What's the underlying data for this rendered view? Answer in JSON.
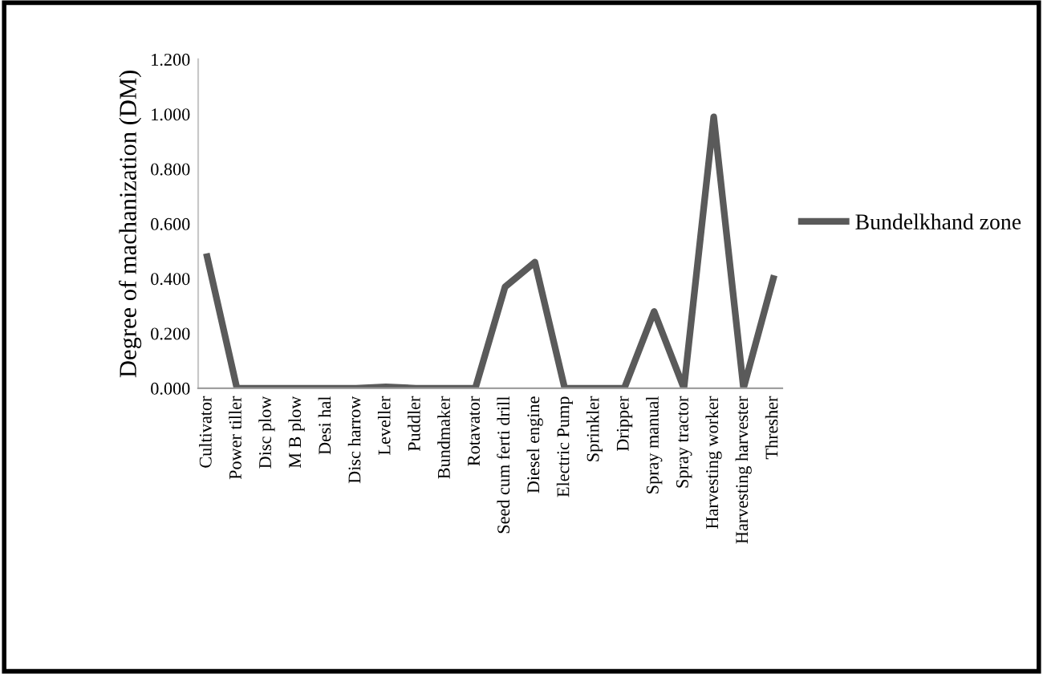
{
  "chart_data": {
    "type": "line",
    "ylabel": "Degree of machanization (DM)",
    "categories": [
      "Cultivator",
      "Power tiller",
      "Disc plow",
      "M B plow",
      "Desi hal",
      "Disc harrow",
      "Leveller",
      "Puddler",
      "Bundmaker",
      "Rotavator",
      "Seed cum ferti drill",
      "Diesel engine",
      "Electric Pump",
      "Sprinkler",
      "Dripper",
      "Spray manual",
      "Spray tractor",
      "Harvesting worker",
      "Harvesting harvester",
      "Thresher"
    ],
    "series": [
      {
        "name": "Bundelkhand zone",
        "color": "#5a5a5a",
        "values": [
          0.48,
          0,
          0,
          0,
          0,
          0,
          0.005,
          0,
          0,
          0,
          0.37,
          0.46,
          0,
          0,
          0,
          0.28,
          0,
          0.99,
          0,
          0.4
        ]
      }
    ],
    "ylim": [
      0,
      1.2
    ],
    "yticks": [
      {
        "value": 0,
        "label": "0.000"
      },
      {
        "value": 0.2,
        "label": "0.200"
      },
      {
        "value": 0.4,
        "label": "0.400"
      },
      {
        "value": 0.6,
        "label": "0.600"
      },
      {
        "value": 0.8,
        "label": "0.800"
      },
      {
        "value": 1.0,
        "label": "1.000"
      },
      {
        "value": 1.2,
        "label": "1.200"
      }
    ],
    "grid": false,
    "legend": "right",
    "marker": "none",
    "line_style": "solid"
  }
}
